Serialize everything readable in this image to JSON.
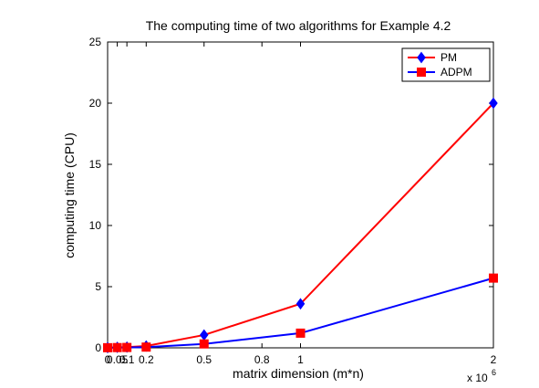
{
  "chart_data": {
    "type": "line",
    "title": "The computing time of two algorithms for Example 4.2",
    "xlabel": "matrix dimension (m*n)",
    "ylabel": "computing time (CPU)",
    "x_multiplier": "x 10",
    "x_multiplier_exp": "6",
    "xlim": [
      0,
      2
    ],
    "ylim": [
      0,
      25
    ],
    "xticks": [
      0,
      0.05,
      0.1,
      0.2,
      0.5,
      0.8,
      1,
      2
    ],
    "xtick_labels": [
      "0",
      "0.05",
      "0.1",
      "0.2",
      "0.5",
      "0.8",
      "1",
      "2"
    ],
    "yticks": [
      0,
      5,
      10,
      15,
      20,
      25
    ],
    "ytick_labels": [
      "0",
      "5",
      "10",
      "15",
      "20",
      "25"
    ],
    "x": [
      0,
      0.05,
      0.1,
      0.2,
      0.5,
      1,
      2
    ],
    "series": [
      {
        "name": "PM",
        "values": [
          0.02,
          0.04,
          0.06,
          0.15,
          1.05,
          3.6,
          20.0
        ],
        "line_color": "#ff0000",
        "marker": "diamond",
        "marker_color": "#0000ff"
      },
      {
        "name": "ADPM",
        "values": [
          0.01,
          0.02,
          0.03,
          0.06,
          0.32,
          1.2,
          5.7
        ],
        "line_color": "#0000ff",
        "marker": "square",
        "marker_color": "#ff0000"
      }
    ],
    "grid": false,
    "legend_position": "top-right",
    "box": true
  }
}
